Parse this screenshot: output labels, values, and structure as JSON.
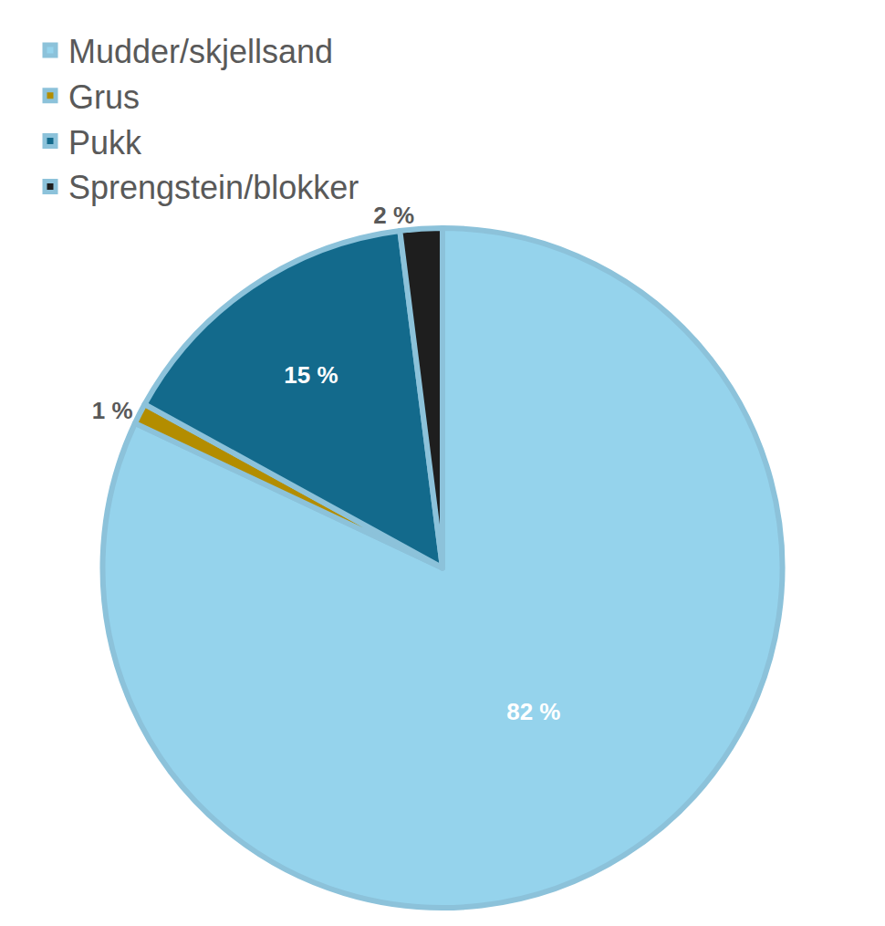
{
  "chart_data": {
    "type": "pie",
    "categories": [
      "Mudder/skjellsand",
      "Grus",
      "Pukk",
      "Sprengstein/blokker"
    ],
    "values": [
      82,
      1,
      15,
      2
    ],
    "value_labels": [
      "82 %",
      "1 %",
      "15 %",
      "2 %"
    ],
    "colors": [
      "#95d3ec",
      "#b38d00",
      "#136a8c",
      "#1e1e1e"
    ],
    "legend": "top",
    "data_labels": true
  }
}
